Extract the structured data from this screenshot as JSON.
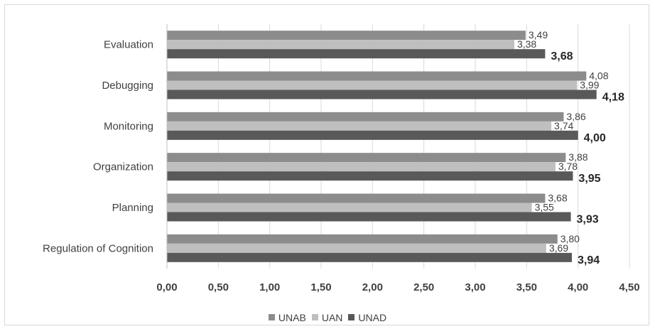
{
  "chart_data": {
    "type": "bar",
    "orientation": "horizontal",
    "categories": [
      "Evaluation",
      "Debugging",
      "Monitoring",
      "Organization",
      "Planning",
      "Regulation of Cognition"
    ],
    "series": [
      {
        "name": "UNAB",
        "color": "#8c8c8c",
        "values": [
          3.49,
          4.08,
          3.86,
          3.88,
          3.68,
          3.8
        ],
        "labels": [
          "3,49",
          "4,08",
          "3,86",
          "3,88",
          "3,68",
          "3,80"
        ]
      },
      {
        "name": "UAN",
        "color": "#bfbfbf",
        "values": [
          3.38,
          3.99,
          3.74,
          3.78,
          3.55,
          3.69
        ],
        "labels": [
          "3,38",
          "3,99",
          "3,74",
          "3,78",
          "3,55",
          "3,69"
        ]
      },
      {
        "name": "UNAD",
        "color": "#595959",
        "values": [
          3.68,
          4.18,
          4.0,
          3.95,
          3.93,
          3.94
        ],
        "labels": [
          "3,68",
          "4,18",
          "4,00",
          "3,95",
          "3,93",
          "3,94"
        ]
      }
    ],
    "xlim": [
      0,
      4.5
    ],
    "xticks": [
      "0,00",
      "0,50",
      "1,00",
      "1,50",
      "2,00",
      "2,50",
      "3,00",
      "3,50",
      "4,00",
      "4,50"
    ],
    "xtick_values": [
      0,
      0.5,
      1,
      1.5,
      2,
      2.5,
      3,
      3.5,
      4,
      4.5
    ],
    "grid": "vertical",
    "legend_position": "bottom"
  }
}
